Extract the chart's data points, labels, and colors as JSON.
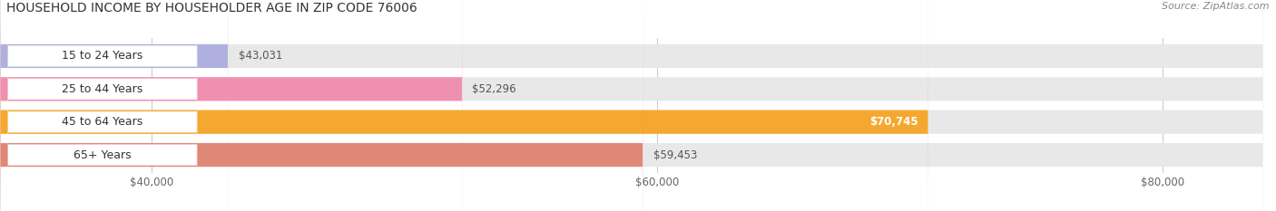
{
  "title": "HOUSEHOLD INCOME BY HOUSEHOLDER AGE IN ZIP CODE 76006",
  "source": "Source: ZipAtlas.com",
  "categories": [
    "15 to 24 Years",
    "25 to 44 Years",
    "45 to 64 Years",
    "65+ Years"
  ],
  "values": [
    43031,
    52296,
    70745,
    59453
  ],
  "bar_colors": [
    "#b0b0e0",
    "#f090b0",
    "#f5a830",
    "#e08878"
  ],
  "bar_labels": [
    "$43,031",
    "$52,296",
    "$70,745",
    "$59,453"
  ],
  "label_in_bar": [
    false,
    false,
    true,
    false
  ],
  "xlim_min": 34000,
  "xlim_max": 84000,
  "xticks": [
    40000,
    60000,
    80000
  ],
  "xtick_labels": [
    "$40,000",
    "$60,000",
    "$80,000"
  ],
  "background_color": "#ffffff",
  "bar_background_color": "#e8e8e8",
  "title_fontsize": 10,
  "source_fontsize": 8,
  "tick_fontsize": 8.5,
  "bar_label_fontsize": 8.5,
  "category_fontsize": 9
}
